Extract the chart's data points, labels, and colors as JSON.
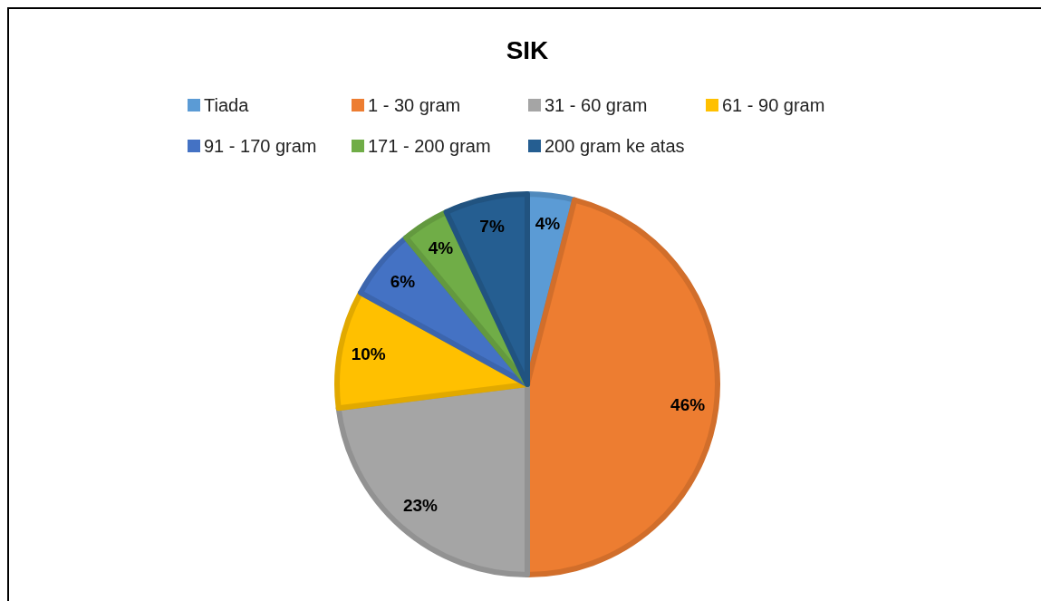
{
  "chart_data": {
    "type": "pie",
    "title": "SIK",
    "categories": [
      "Tiada",
      "1 - 30 gram",
      "31 - 60 gram",
      "61 - 90 gram",
      "91 - 170 gram",
      "171 - 200 gram",
      "200 gram ke atas"
    ],
    "values": [
      4,
      46,
      23,
      10,
      6,
      4,
      7
    ],
    "colors": [
      "#5b9bd5",
      "#ed7d31",
      "#a5a5a5",
      "#ffc000",
      "#4472c4",
      "#70ad47",
      "#255e91"
    ],
    "value_labels": [
      "4%",
      "46%",
      "23%",
      "10%",
      "6%",
      "4%",
      "7%"
    ],
    "legend": "top"
  }
}
